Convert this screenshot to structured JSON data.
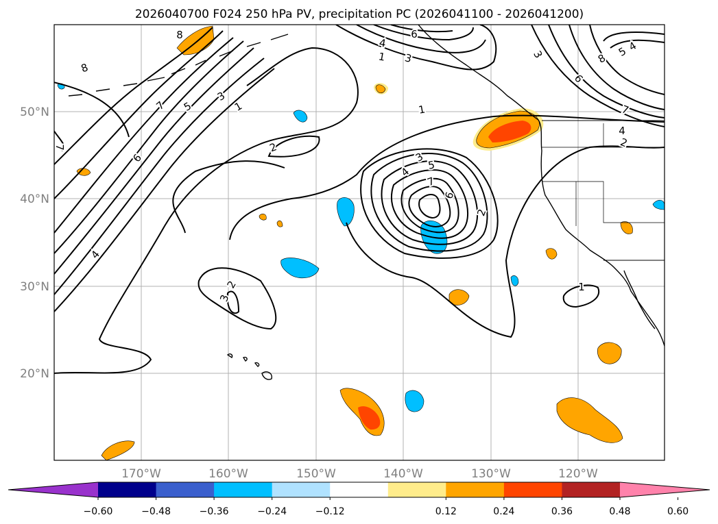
{
  "title": "2026040700 F024 250 hPa PV, precipitation PC (2026041100 - 2026041200)",
  "lat_labels": [
    "50°N",
    "40°N",
    "30°N",
    "20°N"
  ],
  "lon_labels": [
    "170°W",
    "160°W",
    "150°W",
    "140°W",
    "130°W",
    "120°W"
  ],
  "colorbar": {
    "ticks": [
      "−0.60",
      "−0.48",
      "−0.36",
      "−0.24",
      "−0.12",
      "0.12",
      "0.24",
      "0.36",
      "0.48",
      "0.60"
    ],
    "colors": [
      "#9932cc",
      "#00008b",
      "#3a5fcd",
      "#00bfff",
      "#b0e2ff",
      "#ffffff",
      "#ffec8b",
      "#ffa500",
      "#ff4500",
      "#b22222",
      "#ff82ab"
    ]
  },
  "contour_labels": [
    "8",
    "8",
    "7",
    "6",
    "5",
    "3",
    "1",
    "2",
    "4",
    "2",
    "3",
    "6",
    "3",
    "5",
    "4",
    "7",
    "6",
    "1",
    "3",
    "5",
    "4",
    "7",
    "6",
    "2",
    "2",
    "3",
    "1",
    "7",
    "1",
    "4",
    "8"
  ],
  "colors": {
    "frame": "#000000",
    "grid": "#b0b0b0",
    "coast": "#000000"
  }
}
